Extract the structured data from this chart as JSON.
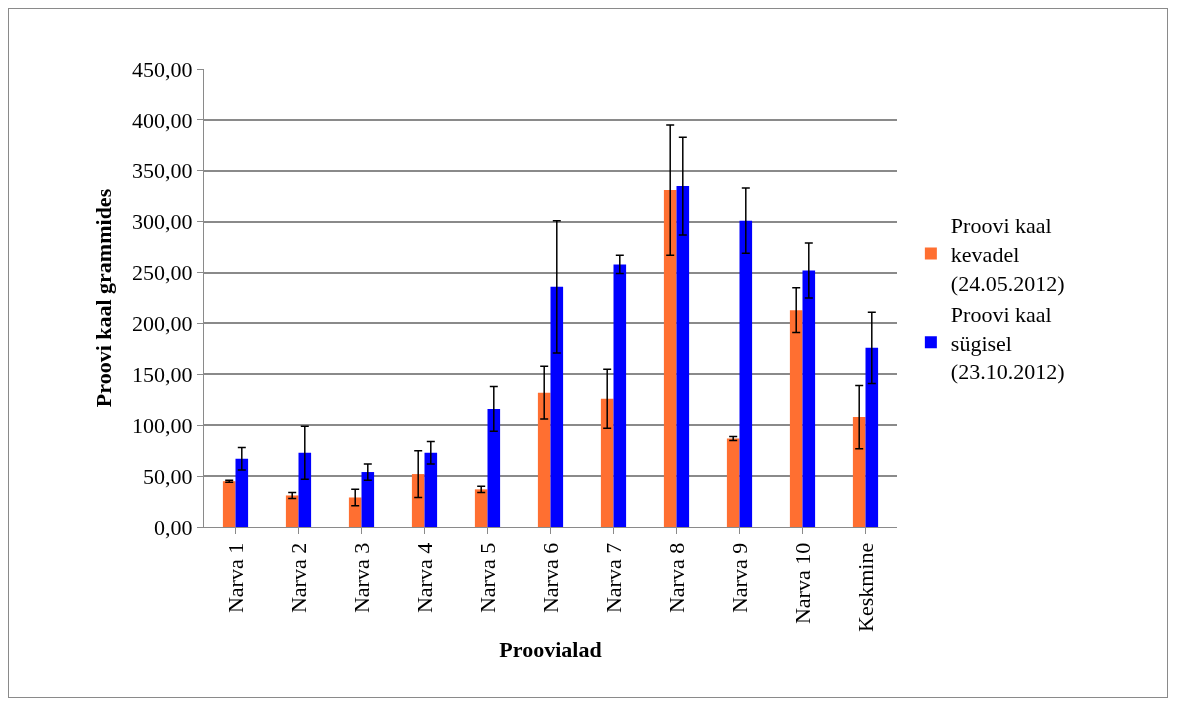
{
  "chart_data": {
    "type": "bar",
    "xlabel": "Proovialad",
    "ylabel": "Proovi kaal grammides",
    "categories": [
      "Narva 1",
      "Narva 2",
      "Narva 3",
      "Narva 4",
      "Narva 5",
      "Narva 6",
      "Narva 7",
      "Narva 8",
      "Narva 9",
      "Narva 10",
      "Keskmine"
    ],
    "series": [
      {
        "name": "Proovi kaal kevadel (24.05.2012)",
        "color": "#ff6f31",
        "values": [
          45,
          31,
          29,
          52,
          37,
          132,
          126,
          331,
          87,
          213,
          108
        ],
        "errors": [
          1,
          3,
          8,
          23,
          3,
          26,
          29,
          64,
          2,
          22,
          31
        ]
      },
      {
        "name": "Proovi kaal sügisel (23.10.2012)",
        "color": "#0000ff",
        "values": [
          67,
          73,
          54,
          73,
          116,
          236,
          258,
          335,
          301,
          252,
          176
        ],
        "errors": [
          11,
          26,
          8,
          11,
          22,
          65,
          9,
          48,
          32,
          27,
          35
        ]
      }
    ],
    "ylim": [
      0,
      450
    ],
    "yticks": [
      {
        "value": 0,
        "label": "0,00"
      },
      {
        "value": 50,
        "label": "50,00"
      },
      {
        "value": 100,
        "label": "100,00"
      },
      {
        "value": 150,
        "label": "150,00"
      },
      {
        "value": 200,
        "label": "200,00"
      },
      {
        "value": 250,
        "label": "250,00"
      },
      {
        "value": 300,
        "label": "300,00"
      },
      {
        "value": 350,
        "label": "350,00"
      },
      {
        "value": 400,
        "label": "400,00"
      },
      {
        "value": 450,
        "label": "450,00"
      }
    ],
    "grid": "y",
    "legend": "right"
  }
}
